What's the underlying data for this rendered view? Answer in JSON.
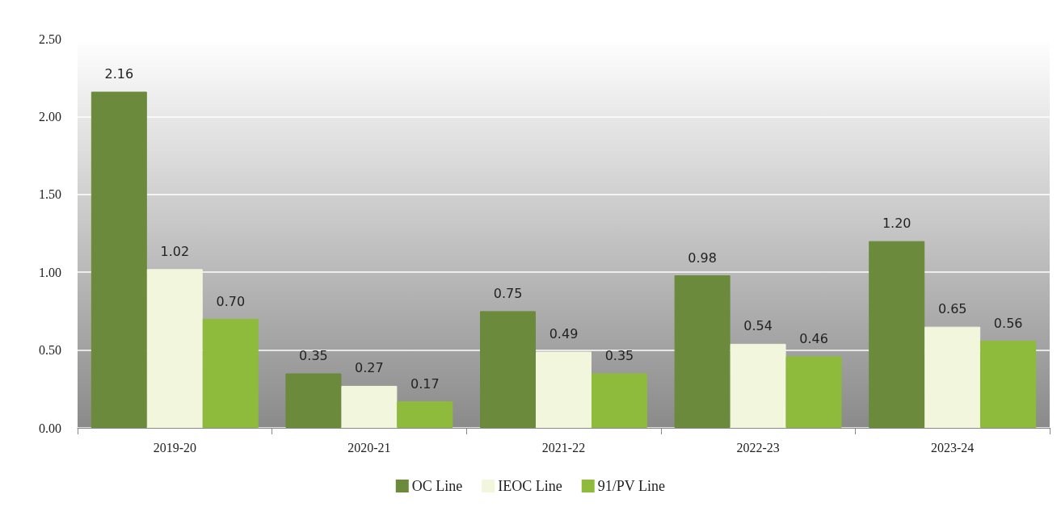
{
  "chart_data": {
    "type": "bar",
    "categories": [
      "2019-20",
      "2020-21",
      "2021-22",
      "2022-23",
      "2023-24"
    ],
    "series": [
      {
        "name": "OC Line",
        "color": "#6b8a3c",
        "values": [
          2.16,
          0.35,
          0.75,
          0.98,
          1.2
        ],
        "value_labels": [
          "2.16",
          "0.35",
          "0.75",
          "0.98",
          "1.20"
        ]
      },
      {
        "name": "IEOC Line",
        "color": "#f1f6dc",
        "values": [
          1.02,
          0.27,
          0.49,
          0.54,
          0.65
        ],
        "value_labels": [
          "1.02",
          "0.27",
          "0.49",
          "0.54",
          "0.65"
        ]
      },
      {
        "name": "91/PV Line",
        "color": "#8fbb3c",
        "values": [
          0.7,
          0.17,
          0.35,
          0.46,
          0.56
        ],
        "value_labels": [
          "0.70",
          "0.17",
          "0.35",
          "0.46",
          "0.56"
        ]
      }
    ],
    "ylim": [
      0,
      2.5
    ],
    "yticks": [
      {
        "value": 0,
        "label": "0.00"
      },
      {
        "value": 0.5,
        "label": "0.50"
      },
      {
        "value": 1,
        "label": "1.00"
      },
      {
        "value": 1.5,
        "label": "1.50"
      },
      {
        "value": 2,
        "label": "2.00"
      },
      {
        "value": 2.5,
        "label": "2.50"
      }
    ],
    "grid": "y",
    "legend": "bottom"
  }
}
